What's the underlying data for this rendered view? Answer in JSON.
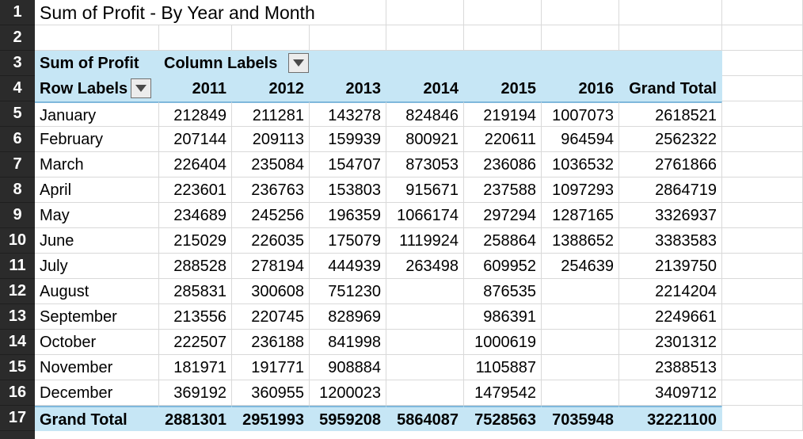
{
  "title": "Sum of Profit - By Year and Month",
  "row_numbers": [
    "1",
    "2",
    "3",
    "4",
    "5",
    "6",
    "7",
    "8",
    "9",
    "10",
    "11",
    "12",
    "13",
    "14",
    "15",
    "16",
    "17"
  ],
  "pivot": {
    "values_label": "Sum of Profit",
    "column_labels": "Column Labels",
    "row_labels": "Row Labels",
    "years": [
      "2011",
      "2012",
      "2013",
      "2014",
      "2015",
      "2016"
    ],
    "grand_total_header": "Grand Total",
    "rows": [
      {
        "month": "January",
        "v": [
          "212849",
          "211281",
          "143278",
          "824846",
          "219194",
          "1007073"
        ],
        "total": "2618521"
      },
      {
        "month": "February",
        "v": [
          "207144",
          "209113",
          "159939",
          "800921",
          "220611",
          "964594"
        ],
        "total": "2562322"
      },
      {
        "month": "March",
        "v": [
          "226404",
          "235084",
          "154707",
          "873053",
          "236086",
          "1036532"
        ],
        "total": "2761866"
      },
      {
        "month": "April",
        "v": [
          "223601",
          "236763",
          "153803",
          "915671",
          "237588",
          "1097293"
        ],
        "total": "2864719"
      },
      {
        "month": "May",
        "v": [
          "234689",
          "245256",
          "196359",
          "1066174",
          "297294",
          "1287165"
        ],
        "total": "3326937"
      },
      {
        "month": "June",
        "v": [
          "215029",
          "226035",
          "175079",
          "1119924",
          "258864",
          "1388652"
        ],
        "total": "3383583"
      },
      {
        "month": "July",
        "v": [
          "288528",
          "278194",
          "444939",
          "263498",
          "609952",
          "254639"
        ],
        "total": "2139750"
      },
      {
        "month": "August",
        "v": [
          "285831",
          "300608",
          "751230",
          "",
          "876535",
          ""
        ],
        "total": "2214204"
      },
      {
        "month": "September",
        "v": [
          "213556",
          "220745",
          "828969",
          "",
          "986391",
          ""
        ],
        "total": "2249661"
      },
      {
        "month": "October",
        "v": [
          "222507",
          "236188",
          "841998",
          "",
          "1000619",
          ""
        ],
        "total": "2301312"
      },
      {
        "month": "November",
        "v": [
          "181971",
          "191771",
          "908884",
          "",
          "1105887",
          ""
        ],
        "total": "2388513"
      },
      {
        "month": "December",
        "v": [
          "369192",
          "360955",
          "1200023",
          "",
          "1479542",
          ""
        ],
        "total": "3409712"
      }
    ],
    "grand_total_label": "Grand Total",
    "grand_totals": [
      "2881301",
      "2951993",
      "5959208",
      "5864087",
      "7528563",
      "7035948"
    ],
    "grand_total_all": "32221100"
  },
  "colors": {
    "band": "#c6e6f5",
    "row_header_bg": "#2b2b2b"
  },
  "icons": {
    "filter": "chevron-down-icon"
  }
}
